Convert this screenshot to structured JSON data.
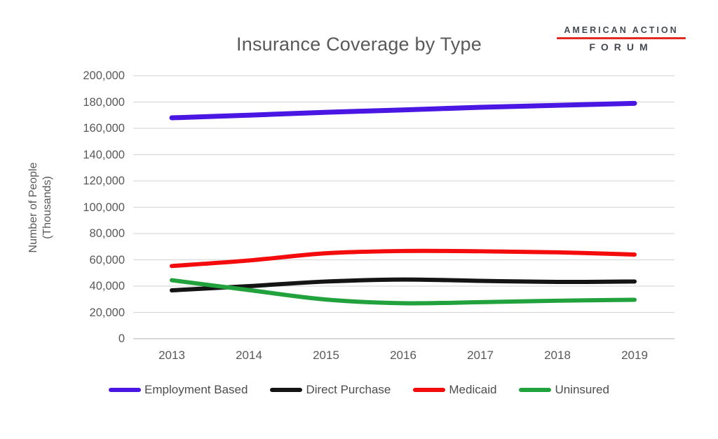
{
  "page": {
    "background": "#ffffff"
  },
  "logo": {
    "line1": "AMERICAN ACTION",
    "line2": "FORUM",
    "text_color": "#434A52",
    "underline_color": "#E02B20"
  },
  "chart_data": {
    "type": "line",
    "title": "Insurance Coverage by Type",
    "title_color": "#595959",
    "xlabel": "",
    "ylabel": "Number of People (Thousands)",
    "ylabel_lines": [
      "Number of People",
      "(Thousands)"
    ],
    "x": [
      2013,
      2014,
      2015,
      2016,
      2017,
      2018,
      2019
    ],
    "ylim": [
      0,
      200000
    ],
    "ytick_step": 20000,
    "ytick_labels": [
      "0",
      "20,000",
      "40,000",
      "60,000",
      "80,000",
      "100,000",
      "120,000",
      "140,000",
      "160,000",
      "180,000",
      "200,000"
    ],
    "grid": "horizontal",
    "gridline_color": "#d9d9d9",
    "legend_position": "bottom",
    "series": [
      {
        "name": "Employment Based",
        "color": "#4A16E3",
        "values": [
          168000,
          170000,
          172200,
          174000,
          176000,
          177500,
          179000
        ]
      },
      {
        "name": "Direct Purchase",
        "color": "#141414",
        "values": [
          36800,
          40000,
          43500,
          45000,
          44000,
          43200,
          43500
        ]
      },
      {
        "name": "Medicaid",
        "color": "#F40B0B",
        "values": [
          55300,
          59500,
          65000,
          66700,
          66500,
          65700,
          64000
        ]
      },
      {
        "name": "Uninsured",
        "color": "#22A23C",
        "values": [
          44500,
          37000,
          29800,
          27000,
          27800,
          28900,
          29600
        ]
      }
    ]
  }
}
